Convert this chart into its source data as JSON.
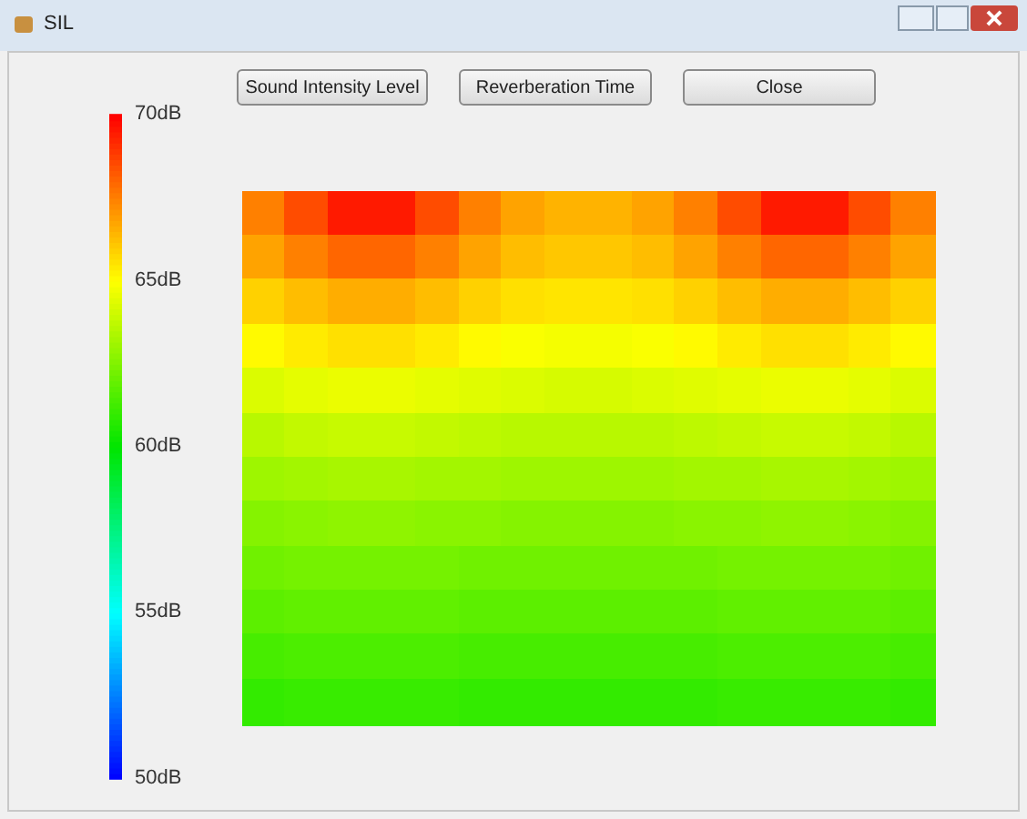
{
  "chart_data": {
    "type": "heatmap",
    "title": "SIL",
    "annotations": [
      "Sound Intensity Level",
      "Reverberation Time",
      "Close"
    ],
    "categories": [
      null,
      null,
      null,
      null,
      null,
      null,
      null,
      null,
      null,
      null,
      null,
      null,
      null,
      null,
      null,
      null
    ],
    "y_categories": [
      null,
      null,
      null,
      null,
      null,
      null,
      null,
      null,
      null,
      null,
      null,
      null
    ],
    "cells": [
      [
        67.5,
        68.5,
        69.5,
        69.5,
        68.5,
        67.5,
        66.8,
        66.5,
        66.5,
        66.8,
        67.5,
        68.5,
        69.5,
        69.5,
        68.5,
        67.5
      ],
      [
        66.8,
        67.5,
        68,
        68,
        67.5,
        66.8,
        66.3,
        66.1,
        66.1,
        66.3,
        66.8,
        67.5,
        68,
        68,
        67.5,
        66.8
      ],
      [
        65.9,
        66.3,
        66.6,
        66.6,
        66.3,
        65.9,
        65.6,
        65.5,
        65.5,
        65.6,
        65.9,
        66.3,
        66.6,
        66.6,
        66.3,
        65.9
      ],
      [
        65.1,
        65.4,
        65.6,
        65.6,
        65.4,
        65.1,
        64.9,
        64.8,
        64.8,
        64.9,
        65.1,
        65.4,
        65.6,
        65.6,
        65.4,
        65.1
      ],
      [
        64.3,
        64.5,
        64.6,
        64.6,
        64.5,
        64.4,
        64.3,
        64.2,
        64.2,
        64.3,
        64.4,
        64.5,
        64.6,
        64.6,
        64.5,
        64.3
      ],
      [
        63.6,
        63.8,
        63.9,
        63.9,
        63.8,
        63.7,
        63.6,
        63.6,
        63.6,
        63.6,
        63.7,
        63.8,
        63.9,
        63.9,
        63.8,
        63.6
      ],
      [
        63.1,
        63.2,
        63.3,
        63.3,
        63.2,
        63.2,
        63.1,
        63.1,
        63.1,
        63.1,
        63.2,
        63.2,
        63.3,
        63.3,
        63.2,
        63.1
      ],
      [
        62.6,
        62.7,
        62.8,
        62.8,
        62.7,
        62.7,
        62.6,
        62.6,
        62.6,
        62.6,
        62.7,
        62.7,
        62.8,
        62.8,
        62.7,
        62.6
      ],
      [
        62.2,
        62.3,
        62.3,
        62.3,
        62.3,
        62.2,
        62.2,
        62.2,
        62.2,
        62.2,
        62.2,
        62.3,
        62.3,
        62.3,
        62.3,
        62.2
      ],
      [
        61.8,
        61.9,
        61.9,
        61.9,
        61.9,
        61.8,
        61.8,
        61.8,
        61.8,
        61.8,
        61.8,
        61.9,
        61.9,
        61.9,
        61.9,
        61.8
      ],
      [
        61.4,
        61.5,
        61.5,
        61.5,
        61.5,
        61.4,
        61.4,
        61.4,
        61.4,
        61.4,
        61.4,
        61.5,
        61.5,
        61.5,
        61.5,
        61.4
      ],
      [
        61.0,
        61.1,
        61.1,
        61.1,
        61.1,
        61.0,
        61.0,
        61.0,
        61.0,
        61.0,
        61.0,
        61.1,
        61.1,
        61.1,
        61.1,
        61.0
      ]
    ],
    "clim": [
      50,
      70
    ],
    "cticks": [
      {
        "value": 50,
        "label": "50dB"
      },
      {
        "value": 55,
        "label": "55dB"
      },
      {
        "value": 60,
        "label": "60dB"
      },
      {
        "value": 65,
        "label": "65dB"
      },
      {
        "value": 70,
        "label": "70dB"
      }
    ],
    "tick_labels": false
  }
}
